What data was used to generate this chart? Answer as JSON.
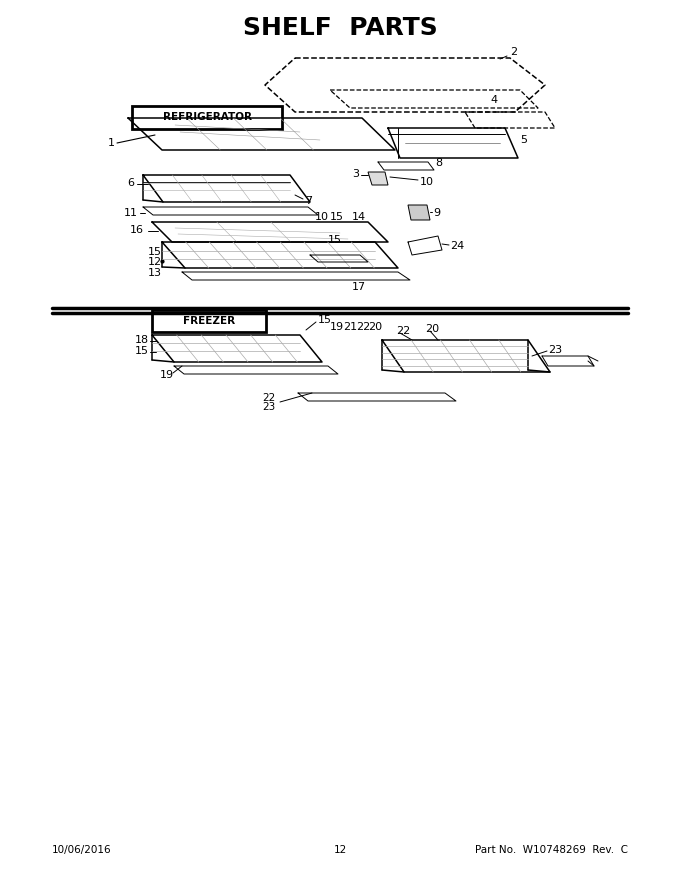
{
  "title": "SHELF  PARTS",
  "title_fontsize": 20,
  "refrigerator_label": "REFRIGERATOR",
  "freezer_label": "FREEZER",
  "date": "10/06/2016",
  "page_num": "12",
  "part_no": "Part No.  W10748269  Rev.  C",
  "bg_color": "#ffffff"
}
